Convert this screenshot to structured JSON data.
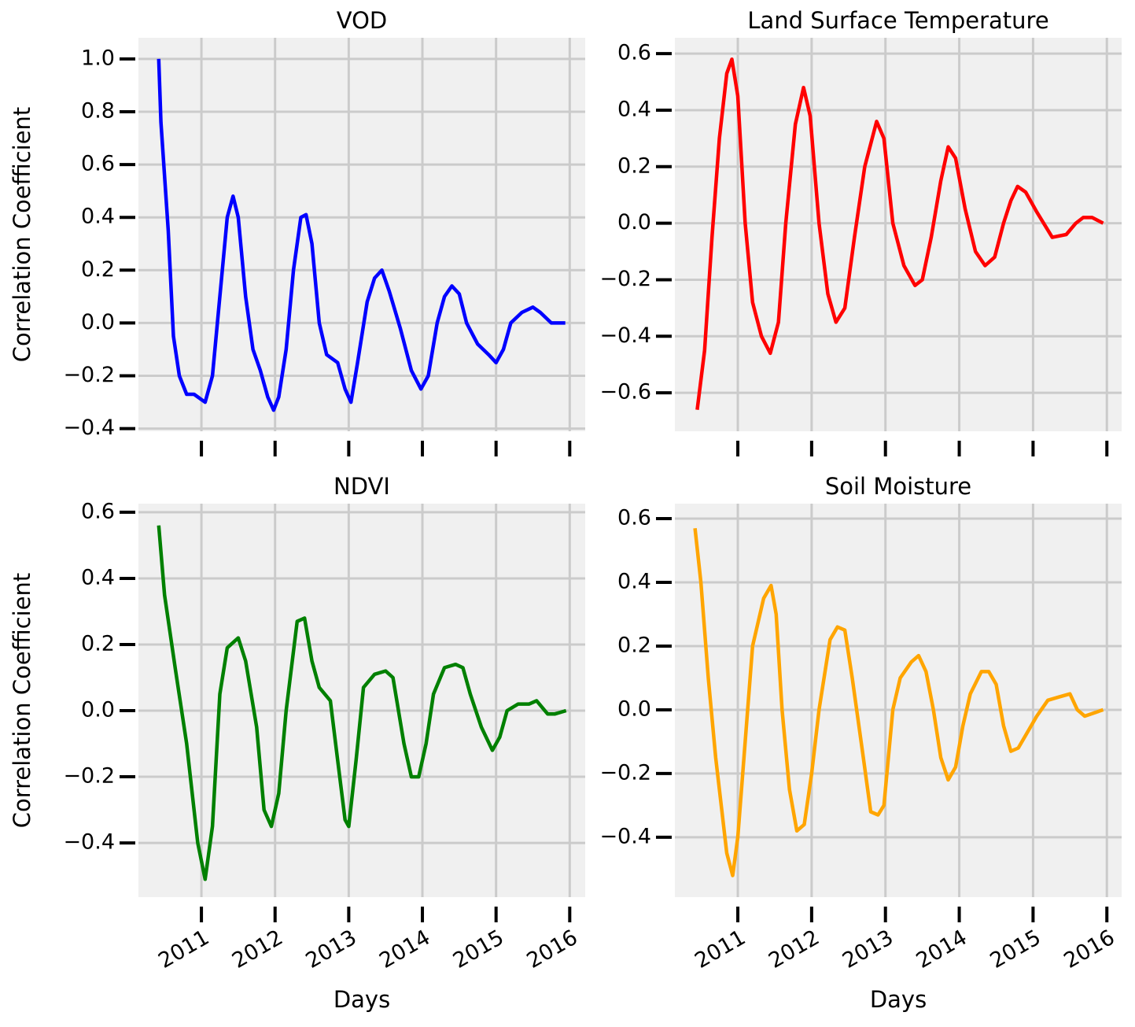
{
  "chart_data": [
    {
      "type": "line",
      "title": "VOD",
      "ylabel": "Correlation Coefficient",
      "color": "#0000ff",
      "grid": true,
      "xlim": [
        2010.145,
        2016.21
      ],
      "ylim": [
        -0.41,
        1.08
      ],
      "xticks": [
        2011,
        2012,
        2013,
        2014,
        2015,
        2016
      ],
      "yticks": [
        {
          "value": -0.4,
          "label": "−0.4"
        },
        {
          "value": -0.2,
          "label": "−0.2"
        },
        {
          "value": 0,
          "label": "0.0"
        },
        0.2,
        0.4,
        0.6,
        0.8,
        {
          "value": 1,
          "label": "1.0"
        }
      ],
      "x": [
        2010.42,
        2010.45,
        2010.55,
        2010.62,
        2010.7,
        2010.8,
        2010.9,
        2011.05,
        2011.15,
        2011.25,
        2011.35,
        2011.43,
        2011.5,
        2011.6,
        2011.7,
        2011.8,
        2011.9,
        2011.98,
        2012.05,
        2012.15,
        2012.25,
        2012.35,
        2012.42,
        2012.5,
        2012.6,
        2012.7,
        2012.85,
        2012.95,
        2013.03,
        2013.12,
        2013.25,
        2013.35,
        2013.45,
        2013.55,
        2013.7,
        2013.85,
        2013.98,
        2014.08,
        2014.2,
        2014.3,
        2014.4,
        2014.5,
        2014.6,
        2014.75,
        2014.9,
        2015.0,
        2015.1,
        2015.2,
        2015.35,
        2015.5,
        2015.6,
        2015.75,
        2015.94
      ],
      "values": [
        1.0,
        0.76,
        0.35,
        -0.05,
        -0.2,
        -0.27,
        -0.27,
        -0.3,
        -0.2,
        0.1,
        0.4,
        0.48,
        0.4,
        0.1,
        -0.1,
        -0.18,
        -0.28,
        -0.33,
        -0.28,
        -0.1,
        0.2,
        0.4,
        0.41,
        0.3,
        0.0,
        -0.12,
        -0.15,
        -0.25,
        -0.3,
        -0.15,
        0.08,
        0.17,
        0.2,
        0.12,
        -0.02,
        -0.18,
        -0.25,
        -0.2,
        0.0,
        0.1,
        0.14,
        0.11,
        0.0,
        -0.08,
        -0.12,
        -0.15,
        -0.1,
        0.0,
        0.04,
        0.06,
        0.04,
        0.0,
        0.0
      ]
    },
    {
      "type": "line",
      "title": "Land Surface Temperature",
      "color": "#ff0000",
      "grid": true,
      "xlim": [
        2010.147,
        2016.2
      ],
      "ylim": [
        -0.736,
        0.656
      ],
      "xticks": [
        2011,
        2012,
        2013,
        2014,
        2015,
        2016
      ],
      "yticks": [
        {
          "value": -0.6,
          "label": "−0.6"
        },
        {
          "value": -0.4,
          "label": "−0.4"
        },
        {
          "value": -0.2,
          "label": "−0.2"
        },
        {
          "value": 0,
          "label": "0.0"
        },
        0.2,
        0.4,
        0.6
      ],
      "x": [
        2010.45,
        2010.55,
        2010.65,
        2010.75,
        2010.85,
        2010.92,
        2011.0,
        2011.1,
        2011.2,
        2011.32,
        2011.44,
        2011.55,
        2011.65,
        2011.78,
        2011.89,
        2011.98,
        2012.1,
        2012.22,
        2012.33,
        2012.45,
        2012.58,
        2012.72,
        2012.88,
        2012.98,
        2013.1,
        2013.25,
        2013.4,
        2013.5,
        2013.62,
        2013.75,
        2013.85,
        2013.95,
        2014.08,
        2014.22,
        2014.35,
        2014.48,
        2014.6,
        2014.7,
        2014.79,
        2014.9,
        2015.05,
        2015.26,
        2015.45,
        2015.58,
        2015.68,
        2015.8,
        2015.95
      ],
      "values": [
        -0.66,
        -0.45,
        -0.05,
        0.3,
        0.53,
        0.58,
        0.45,
        0.0,
        -0.28,
        -0.4,
        -0.46,
        -0.35,
        0.0,
        0.35,
        0.48,
        0.38,
        0.0,
        -0.25,
        -0.35,
        -0.3,
        -0.05,
        0.2,
        0.36,
        0.3,
        0.0,
        -0.15,
        -0.22,
        -0.2,
        -0.05,
        0.15,
        0.27,
        0.23,
        0.05,
        -0.1,
        -0.15,
        -0.12,
        0.0,
        0.08,
        0.13,
        0.11,
        0.04,
        -0.05,
        -0.04,
        0.0,
        0.02,
        0.02,
        0.0
      ]
    },
    {
      "type": "line",
      "title": "NDVI",
      "ylabel": "Correlation Coefficient",
      "xlabel": "Days",
      "color": "#008000",
      "grid": true,
      "xlim": [
        2010.145,
        2016.21
      ],
      "ylim": [
        -0.564,
        0.626
      ],
      "xticks": [
        2011,
        2012,
        2013,
        2014,
        2015,
        2016
      ],
      "yticks": [
        {
          "value": -0.4,
          "label": "−0.4"
        },
        {
          "value": -0.2,
          "label": "−0.2"
        },
        {
          "value": 0,
          "label": "0.0"
        },
        0.2,
        0.4,
        0.6
      ],
      "x": [
        2010.42,
        2010.5,
        2010.65,
        2010.8,
        2010.95,
        2011.05,
        2011.15,
        2011.25,
        2011.35,
        2011.5,
        2011.6,
        2011.75,
        2011.85,
        2011.95,
        2012.05,
        2012.15,
        2012.3,
        2012.4,
        2012.5,
        2012.6,
        2012.75,
        2012.85,
        2012.95,
        2013.0,
        2013.1,
        2013.2,
        2013.35,
        2013.5,
        2013.6,
        2013.75,
        2013.85,
        2013.95,
        2014.05,
        2014.15,
        2014.3,
        2014.45,
        2014.55,
        2014.65,
        2014.8,
        2014.95,
        2015.05,
        2015.15,
        2015.3,
        2015.45,
        2015.55,
        2015.7,
        2015.8,
        2015.95
      ],
      "values": [
        0.56,
        0.35,
        0.12,
        -0.1,
        -0.4,
        -0.51,
        -0.35,
        0.05,
        0.19,
        0.22,
        0.15,
        -0.05,
        -0.3,
        -0.35,
        -0.25,
        0.0,
        0.27,
        0.28,
        0.15,
        0.07,
        0.03,
        -0.15,
        -0.33,
        -0.35,
        -0.15,
        0.07,
        0.11,
        0.12,
        0.1,
        -0.1,
        -0.2,
        -0.2,
        -0.1,
        0.05,
        0.13,
        0.14,
        0.13,
        0.05,
        -0.05,
        -0.12,
        -0.08,
        0.0,
        0.02,
        0.02,
        0.03,
        -0.01,
        -0.01,
        0.0
      ]
    },
    {
      "type": "line",
      "title": "Soil Moisture",
      "xlabel": "Days",
      "color": "#ffa500",
      "grid": true,
      "xlim": [
        2010.147,
        2016.2
      ],
      "ylim": [
        -0.588,
        0.647
      ],
      "xticks": [
        2011,
        2012,
        2013,
        2014,
        2015,
        2016
      ],
      "yticks": [
        {
          "value": -0.4,
          "label": "−0.4"
        },
        {
          "value": -0.2,
          "label": "−0.2"
        },
        {
          "value": 0,
          "label": "0.0"
        },
        0.2,
        0.4,
        0.6
      ],
      "x": [
        2010.42,
        2010.5,
        2010.6,
        2010.7,
        2010.85,
        2010.93,
        2011.0,
        2011.1,
        2011.2,
        2011.35,
        2011.45,
        2011.52,
        2011.6,
        2011.7,
        2011.8,
        2011.9,
        2012.0,
        2012.1,
        2012.25,
        2012.35,
        2012.45,
        2012.55,
        2012.7,
        2012.8,
        2012.9,
        2012.98,
        2013.1,
        2013.2,
        2013.35,
        2013.45,
        2013.55,
        2013.65,
        2013.75,
        2013.85,
        2013.95,
        2014.05,
        2014.15,
        2014.3,
        2014.4,
        2014.5,
        2014.6,
        2014.7,
        2014.8,
        2014.95,
        2015.05,
        2015.2,
        2015.35,
        2015.5,
        2015.6,
        2015.7,
        2015.95
      ],
      "values": [
        0.57,
        0.4,
        0.1,
        -0.15,
        -0.45,
        -0.52,
        -0.4,
        -0.1,
        0.2,
        0.35,
        0.39,
        0.3,
        0.0,
        -0.25,
        -0.38,
        -0.36,
        -0.2,
        0.0,
        0.22,
        0.26,
        0.25,
        0.1,
        -0.15,
        -0.32,
        -0.33,
        -0.3,
        0.0,
        0.1,
        0.15,
        0.17,
        0.12,
        0.0,
        -0.15,
        -0.22,
        -0.18,
        -0.05,
        0.05,
        0.12,
        0.12,
        0.08,
        -0.05,
        -0.13,
        -0.12,
        -0.06,
        -0.02,
        0.03,
        0.04,
        0.05,
        0.0,
        -0.02,
        0.0
      ]
    }
  ]
}
